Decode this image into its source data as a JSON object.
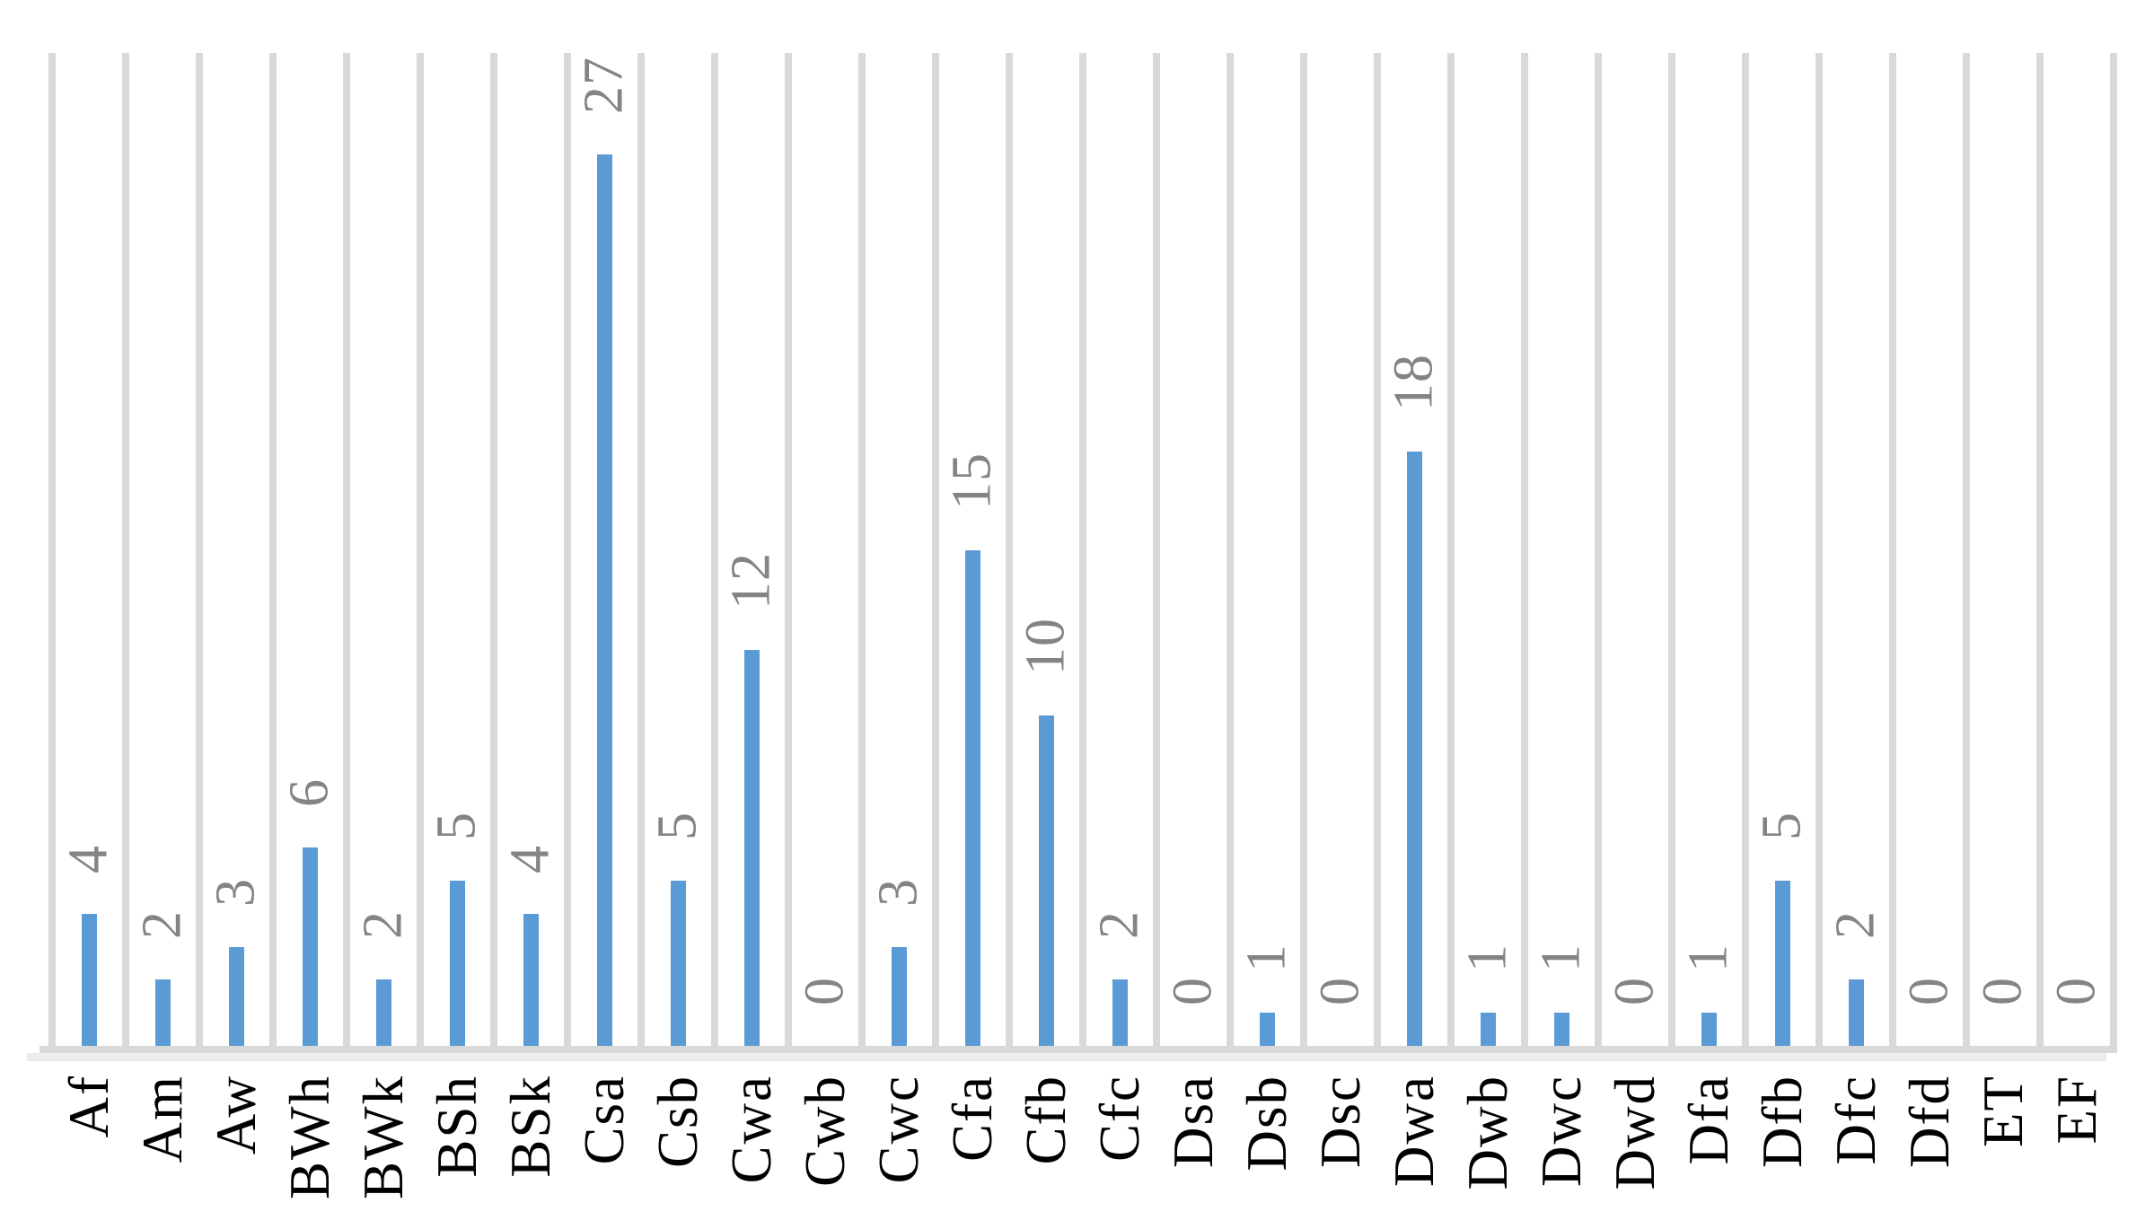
{
  "chart_data": {
    "type": "bar",
    "title": "",
    "xlabel": "",
    "ylabel": "",
    "categories": [
      "Af",
      "Am",
      "Aw",
      "BWh",
      "BWk",
      "BSh",
      "BSk",
      "Csa",
      "Csb",
      "Cwa",
      "Cwb",
      "Cwc",
      "Cfa",
      "Cfb",
      "Cfc",
      "Dsa",
      "Dsb",
      "Dsc",
      "Dwa",
      "Dwb",
      "Dwc",
      "Dwd",
      "Dfa",
      "Dfb",
      "Dfc",
      "Dfd",
      "ET",
      "EF"
    ],
    "values": [
      4,
      2,
      3,
      6,
      2,
      5,
      4,
      27,
      5,
      12,
      0,
      3,
      15,
      10,
      2,
      0,
      1,
      0,
      18,
      1,
      1,
      0,
      1,
      5,
      2,
      0,
      0,
      0
    ],
    "data_labels_shown": true,
    "ylim": [
      0,
      30
    ],
    "legend": "none",
    "grid": "vertical-column-separators",
    "label_rotation_deg": -90,
    "colors": {
      "bar": "#5B9BD5",
      "gridline": "#D9D9D9",
      "axis_line": "#D9D9D9",
      "axis_shadow": "#ECECEC",
      "value_label": "#848484",
      "category_label": "#000000",
      "background": "#FFFFFF"
    }
  }
}
